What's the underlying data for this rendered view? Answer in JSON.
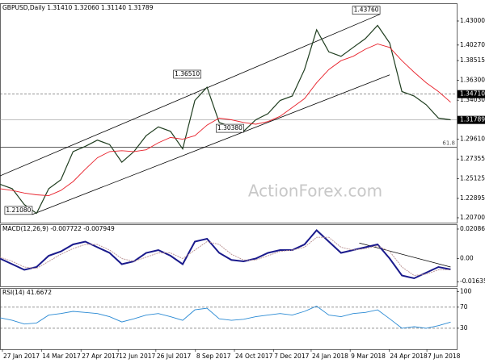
{
  "chart_data": [
    {
      "type": "line",
      "title": "GBPUSD,Daily  1.31410 1.32060 1.31140 1.31789",
      "watermark": "ActionForex.com",
      "x": [
        0,
        2,
        4,
        6,
        8,
        10,
        12,
        14,
        16,
        18,
        20,
        22,
        24,
        26,
        28,
        30,
        32,
        34,
        36,
        38,
        40,
        42,
        44,
        46,
        48,
        50,
        52,
        54,
        56,
        58,
        60,
        62,
        64,
        66,
        68,
        70,
        72,
        74
      ],
      "xlim": [
        0,
        75
      ],
      "ylim": [
        1.2015,
        1.4492
      ],
      "yticks": [
        {
          "value": 1.43,
          "label": "1.43000"
        },
        {
          "value": 1.4027,
          "label": "1.40270"
        },
        {
          "value": 1.38515,
          "label": "1.38515"
        },
        {
          "value": 1.363,
          "label": "1.36300"
        },
        {
          "value": 1.3403,
          "label": "1.34030"
        },
        {
          "value": 1.2961,
          "label": "1.29610"
        },
        {
          "value": 1.27355,
          "label": "1.27355"
        },
        {
          "value": 1.25125,
          "label": "1.25125"
        },
        {
          "value": 1.22895,
          "label": "1.22895"
        },
        {
          "value": 1.207,
          "label": "1.20700"
        }
      ],
      "series": [
        {
          "color": "#1f3d1f",
          "values": [
            1.245,
            1.24,
            1.222,
            1.212,
            1.24,
            1.25,
            1.282,
            1.288,
            1.295,
            1.29,
            1.27,
            1.282,
            1.3,
            1.31,
            1.305,
            1.285,
            1.34,
            1.355,
            1.315,
            1.31,
            1.305,
            1.318,
            1.325,
            1.34,
            1.345,
            1.375,
            1.42,
            1.395,
            1.39,
            1.4,
            1.41,
            1.425,
            1.405,
            1.35,
            1.345,
            1.335,
            1.32,
            1.318
          ]
        },
        {
          "color": "#e8202a",
          "values": [
            1.24,
            1.238,
            1.235,
            1.233,
            1.232,
            1.238,
            1.248,
            1.262,
            1.275,
            1.282,
            1.283,
            1.282,
            1.284,
            1.292,
            1.298,
            1.296,
            1.3,
            1.312,
            1.32,
            1.318,
            1.315,
            1.313,
            1.316,
            1.322,
            1.332,
            1.342,
            1.36,
            1.375,
            1.385,
            1.39,
            1.398,
            1.404,
            1.4,
            1.385,
            1.372,
            1.36,
            1.35,
            1.338
          ]
        }
      ],
      "trendlines": [
        {
          "x": [
            0,
            62.4
          ],
          "values": [
            1.2545,
            1.4376
          ]
        },
        {
          "x": [
            5.3,
            64
          ],
          "values": [
            1.2108,
            1.369
          ]
        }
      ],
      "levels": [
        {
          "value": 1.3471,
          "label": "1.34710",
          "style": "dashed"
        },
        {
          "value": 1.31789,
          "label": "1.31789",
          "style": "solid"
        }
      ],
      "fib_level": {
        "value": 1.287,
        "label": "61.8"
      },
      "annotations": [
        {
          "x": 62.4,
          "value": 1.4376,
          "label": "1.43760"
        },
        {
          "x": 33,
          "value": 1.3651,
          "label": "1.36510"
        },
        {
          "x": 35.5,
          "value": 1.3038,
          "label": "1.30380"
        },
        {
          "x": 5.3,
          "value": 1.2108,
          "label": "1.21080"
        }
      ]
    },
    {
      "type": "line",
      "title": "MACD(12,26,9) -0.007722 -0.007949",
      "x": [
        0,
        2,
        4,
        6,
        8,
        10,
        12,
        14,
        16,
        18,
        20,
        22,
        24,
        26,
        28,
        30,
        32,
        34,
        36,
        38,
        40,
        42,
        44,
        46,
        48,
        50,
        52,
        54,
        56,
        58,
        60,
        62,
        64,
        66,
        68,
        70,
        72,
        74
      ],
      "xlim": [
        0,
        75
      ],
      "ylim": [
        -0.0197,
        0.0237
      ],
      "yticks": [
        {
          "value": 0.020861,
          "label": "0.020861"
        },
        {
          "value": 0,
          "label": "0.00"
        },
        {
          "value": -0.016357,
          "label": "-0.016357"
        }
      ],
      "series": [
        {
          "color": "#1a1a8c",
          "values": [
            0,
            -0.004,
            -0.008,
            -0.006,
            0.002,
            0.005,
            0.01,
            0.012,
            0.008,
            0.004,
            -0.004,
            -0.002,
            0.004,
            0.006,
            0.002,
            -0.004,
            0.012,
            0.014,
            0.004,
            -0.001,
            -0.002,
            0,
            0.004,
            0.006,
            0.006,
            0.01,
            0.02,
            0.012,
            0.004,
            0.006,
            0.008,
            0.01,
            0,
            -0.012,
            -0.014,
            -0.01,
            -0.006,
            -0.007722
          ]
        },
        {
          "color": "#b89090",
          "values": [
            0.001,
            -0.002,
            -0.006,
            -0.007,
            -0.002,
            0.003,
            0.007,
            0.01,
            0.01,
            0.006,
            0,
            -0.002,
            0.001,
            0.004,
            0.004,
            0,
            0.006,
            0.012,
            0.01,
            0.003,
            -0.001,
            -0.001,
            0.002,
            0.005,
            0.006,
            0.008,
            0.015,
            0.015,
            0.008,
            0.006,
            0.007,
            0.009,
            0.005,
            -0.006,
            -0.012,
            -0.011,
            -0.008,
            -0.007949
          ]
        }
      ],
      "trendlines": [
        {
          "x": [
            59,
            74
          ],
          "values": [
            0.011,
            -0.006
          ]
        }
      ]
    },
    {
      "type": "line",
      "title": "RSI(14) 41.6672",
      "x": [
        0,
        2,
        4,
        6,
        8,
        10,
        12,
        14,
        16,
        18,
        20,
        22,
        24,
        26,
        28,
        30,
        32,
        34,
        36,
        38,
        40,
        42,
        44,
        46,
        48,
        50,
        52,
        54,
        56,
        58,
        60,
        62,
        64,
        66,
        68,
        70,
        72,
        74
      ],
      "xlim": [
        0,
        75
      ],
      "ylim": [
        -10,
        105
      ],
      "yticks": [
        100,
        70,
        30
      ],
      "levels": [
        {
          "value": 70,
          "style": "dashed"
        },
        {
          "value": 30,
          "style": "dashed"
        }
      ],
      "series": [
        {
          "color": "#2a8ad4",
          "values": [
            50,
            45,
            38,
            40,
            55,
            58,
            62,
            60,
            58,
            52,
            42,
            48,
            55,
            58,
            52,
            45,
            65,
            68,
            48,
            45,
            47,
            52,
            55,
            58,
            55,
            62,
            72,
            55,
            52,
            58,
            60,
            65,
            48,
            30,
            33,
            30,
            35,
            41.6672
          ]
        }
      ],
      "xticks": [
        {
          "value": 0.4,
          "label": "27 Jan 2017"
        },
        {
          "value": 6.8,
          "label": "14 Mar 2017"
        },
        {
          "value": 13.3,
          "label": "27 Apr 2017"
        },
        {
          "value": 19.4,
          "label": "12 Jun 2017"
        },
        {
          "value": 25.6,
          "label": "26 Jul 2017"
        },
        {
          "value": 32.1,
          "label": "8 Sep 2017"
        },
        {
          "value": 38.5,
          "label": "24 Oct 2017"
        },
        {
          "value": 44.9,
          "label": "7 Dec 2017"
        },
        {
          "value": 51.1,
          "label": "24 Jan 2018"
        },
        {
          "value": 57.5,
          "label": "9 Mar 2018"
        },
        {
          "value": 63.9,
          "label": "24 Apr 2018"
        },
        {
          "value": 70.1,
          "label": "7 Jun 2018"
        }
      ]
    }
  ]
}
